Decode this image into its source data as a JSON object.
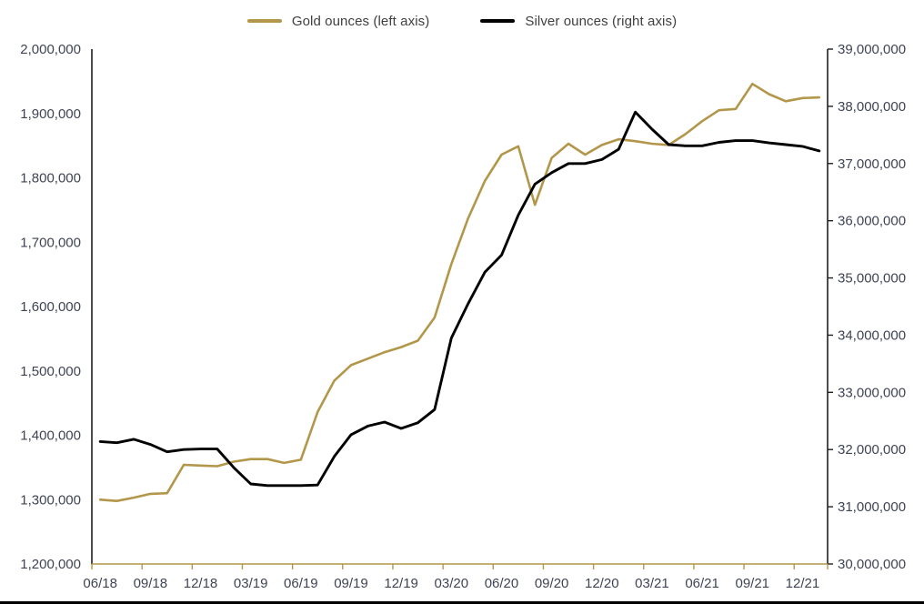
{
  "legend": {
    "gold_label": "Gold ounces (left axis)",
    "silver_label": "Silver ounces (right axis)"
  },
  "colors": {
    "gold_line": "#B2974B",
    "silver_line": "#000000",
    "axis_text": "#3F4455",
    "x_axis_line": "#B2974B",
    "y_axis_line": "#1f1f1f",
    "window_border": "#000000"
  },
  "chart_data": {
    "type": "line",
    "title": "",
    "grid": false,
    "legend_position": "top",
    "x": [
      "06/18",
      "07/18",
      "08/18",
      "09/18",
      "10/18",
      "11/18",
      "12/18",
      "01/19",
      "02/19",
      "03/19",
      "04/19",
      "05/19",
      "06/19",
      "07/19",
      "08/19",
      "09/19",
      "10/19",
      "11/19",
      "12/19",
      "01/20",
      "02/20",
      "03/20",
      "04/20",
      "05/20",
      "06/20",
      "07/20",
      "08/20",
      "09/20",
      "10/20",
      "11/20",
      "12/20",
      "01/21",
      "02/21",
      "03/21",
      "04/21",
      "05/21",
      "06/21",
      "07/21",
      "08/21",
      "09/21",
      "10/21",
      "11/21",
      "12/21",
      "01/22"
    ],
    "x_tick_labels": [
      "06/18",
      "09/18",
      "12/18",
      "03/19",
      "06/19",
      "09/19",
      "12/19",
      "03/20",
      "06/20",
      "09/20",
      "12/20",
      "03/21",
      "06/21",
      "09/21",
      "12/21"
    ],
    "x_tick_every": 3,
    "left_axis": {
      "min": 1200000,
      "max": 2000000,
      "step": 100000
    },
    "right_axis": {
      "min": 30000000,
      "max": 39000000,
      "step": 1000000
    },
    "series": [
      {
        "name": "Gold ounces (left axis)",
        "axis": "left",
        "color": "#B2974B",
        "values": [
          1300000,
          1298000,
          1303000,
          1309000,
          1310000,
          1354000,
          1353000,
          1352000,
          1359000,
          1363000,
          1363000,
          1357000,
          1362000,
          1436000,
          1485000,
          1509000,
          1519000,
          1529000,
          1537000,
          1547000,
          1583000,
          1666000,
          1737000,
          1795000,
          1836000,
          1849000,
          1758000,
          1831000,
          1853000,
          1836000,
          1851000,
          1860000,
          1857000,
          1853000,
          1851000,
          1868000,
          1888000,
          1905000,
          1907000,
          1946000,
          1930000,
          1919000,
          1924000,
          1925000
        ]
      },
      {
        "name": "Silver ounces (right axis)",
        "axis": "right",
        "color": "#000000",
        "values": [
          32140000,
          32120000,
          32180000,
          32090000,
          31960000,
          32000000,
          32010000,
          32010000,
          31680000,
          31400000,
          31370000,
          31370000,
          31370000,
          31380000,
          31880000,
          32260000,
          32410000,
          32480000,
          32370000,
          32470000,
          32700000,
          33950000,
          34550000,
          35100000,
          35400000,
          36100000,
          36640000,
          36840000,
          37000000,
          37000000,
          37070000,
          37250000,
          37900000,
          37600000,
          37330000,
          37310000,
          37310000,
          37370000,
          37400000,
          37400000,
          37360000,
          37330000,
          37300000,
          37220000
        ]
      }
    ]
  }
}
